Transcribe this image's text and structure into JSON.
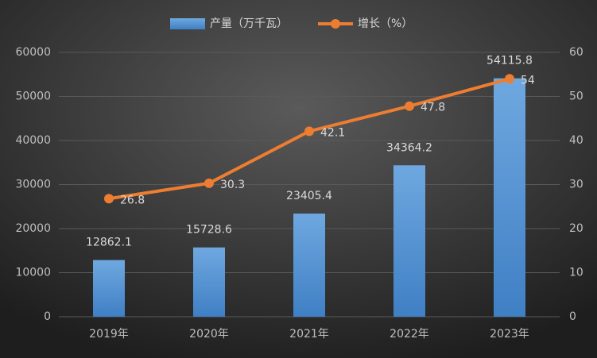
{
  "chart_data": {
    "type": "bar",
    "categories": [
      "2019年",
      "2020年",
      "2021年",
      "2022年",
      "2023年"
    ],
    "series": [
      {
        "name": "产量（万千瓦）",
        "type": "bar",
        "color": "#5b9bd5",
        "values": [
          12862.1,
          15728.6,
          23405.4,
          34364.2,
          54115.8
        ]
      },
      {
        "name": "增长（%）",
        "type": "line",
        "axis": "y2",
        "color": "#ed7d31",
        "values": [
          26.8,
          30.3,
          42.1,
          47.8,
          54
        ]
      }
    ],
    "ylim": [
      0,
      60000
    ],
    "yticks": [
      0,
      10000,
      20000,
      30000,
      40000,
      50000,
      60000
    ],
    "y2lim": [
      0,
      60
    ],
    "y2ticks": [
      0,
      10,
      20,
      30,
      40,
      50,
      60
    ],
    "grid": true,
    "legend": "top"
  }
}
